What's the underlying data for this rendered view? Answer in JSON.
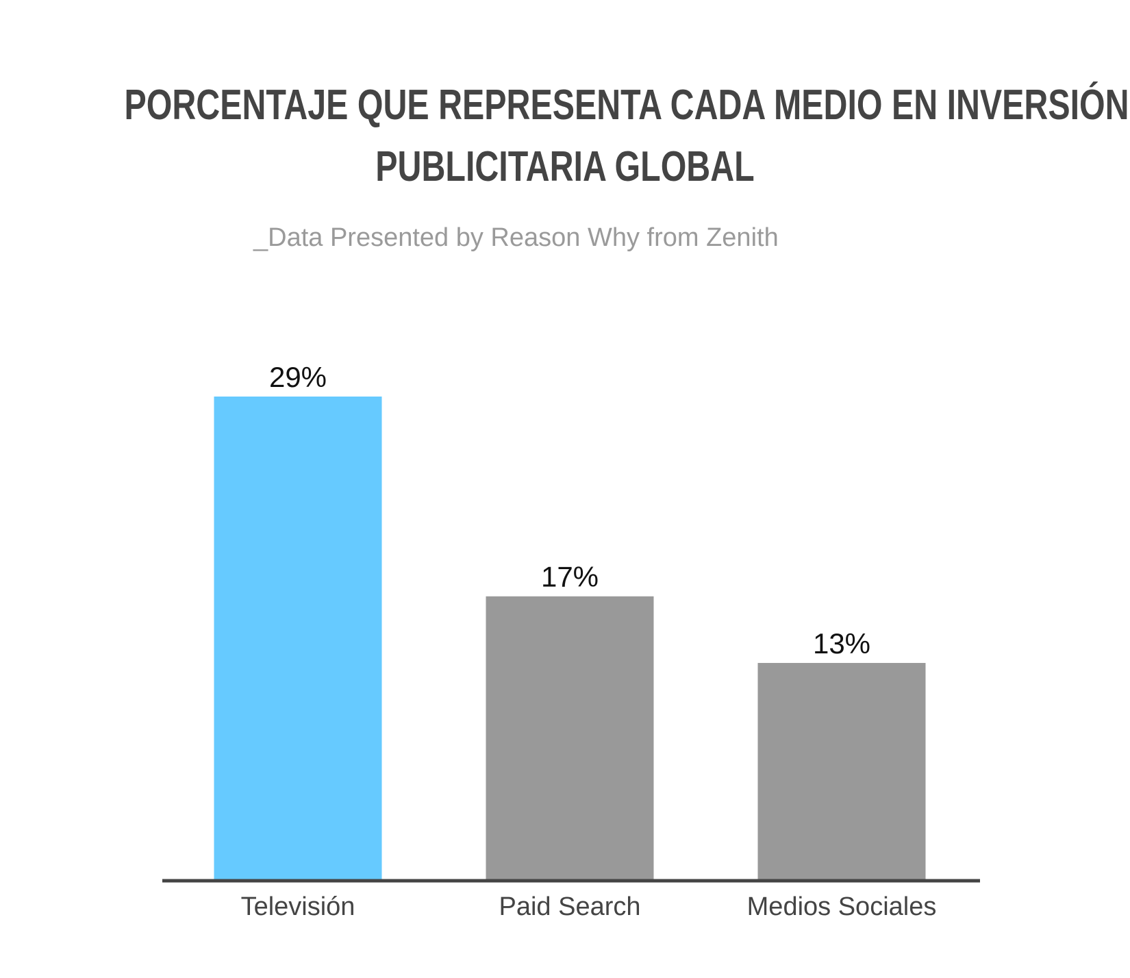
{
  "colors": {
    "title": "#444444",
    "subtitle": "#9a9a9a",
    "highlight_bar": "#66caff",
    "default_bar": "#999999",
    "axis": "#444444",
    "data_label": "#111111",
    "category_label": "#444444"
  },
  "chart_data": {
    "type": "bar",
    "title_lines": [
      "PORCENTAJE QUE REPRESENTA CADA MEDIO EN INVERSIÓN",
      "PUBLICITARIA GLOBAL"
    ],
    "subtitle": "_Data Presented by Reason Why from Zenith",
    "categories": [
      "Televisión",
      "Paid Search",
      "Medios Sociales"
    ],
    "values": [
      29,
      17,
      13
    ],
    "value_labels": [
      "29%",
      "17%",
      "13%"
    ],
    "highlight_index": 0,
    "unit": "%",
    "ylim": [
      0,
      29
    ],
    "grid": false,
    "legend": "none"
  }
}
